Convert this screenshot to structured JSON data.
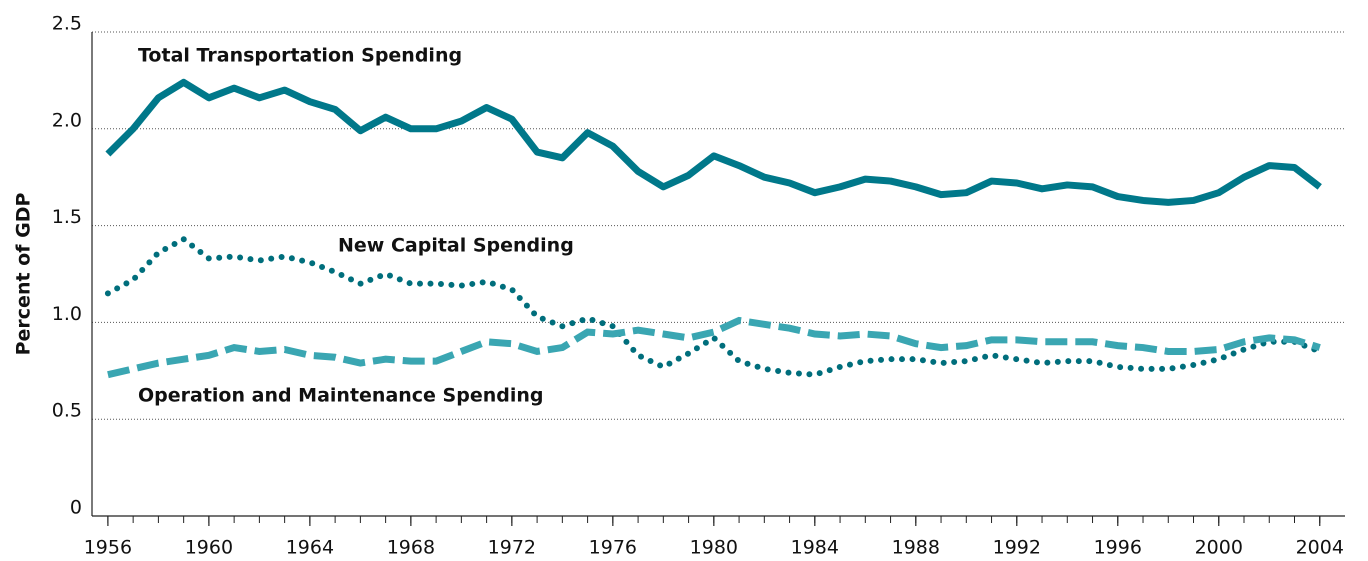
{
  "chart_data": {
    "type": "line",
    "y_label": "Percent of GDP",
    "x": [
      1956,
      1957,
      1958,
      1959,
      1960,
      1961,
      1962,
      1963,
      1964,
      1965,
      1966,
      1967,
      1968,
      1969,
      1970,
      1971,
      1972,
      1973,
      1974,
      1975,
      1976,
      1977,
      1978,
      1979,
      1980,
      1981,
      1982,
      1983,
      1984,
      1985,
      1986,
      1987,
      1988,
      1989,
      1990,
      1991,
      1992,
      1993,
      1994,
      1995,
      1996,
      1997,
      1998,
      1999,
      2000,
      2001,
      2002,
      2003,
      2004
    ],
    "xlim": [
      1955.37,
      2005
    ],
    "xticks": [
      1956,
      1960,
      1964,
      1968,
      1972,
      1976,
      1980,
      1984,
      1988,
      1992,
      1996,
      2000,
      2004
    ],
    "ylim": [
      0,
      2.5
    ],
    "yticks": [
      0,
      0.5,
      {
        "value": 1,
        "label": "1.0"
      },
      1.5,
      {
        "value": 2,
        "label": "2.0"
      },
      2.5
    ],
    "grid": true,
    "series": [
      {
        "name": "Total Transportation Spending",
        "color": "#00788a",
        "style": "solid",
        "values": [
          1.87,
          2.0,
          2.16,
          2.24,
          2.16,
          2.21,
          2.16,
          2.2,
          2.14,
          2.1,
          1.99,
          2.06,
          2.0,
          2.0,
          2.04,
          2.11,
          2.05,
          1.88,
          1.85,
          1.98,
          1.91,
          1.78,
          1.7,
          1.76,
          1.86,
          1.81,
          1.75,
          1.72,
          1.67,
          1.7,
          1.74,
          1.73,
          1.7,
          1.66,
          1.67,
          1.73,
          1.72,
          1.69,
          1.71,
          1.7,
          1.65,
          1.63,
          1.62,
          1.63,
          1.67,
          1.75,
          1.81,
          1.8,
          1.7
        ]
      },
      {
        "name": "New Capital Spending",
        "color": "#006e7c",
        "style": "dotted",
        "values": [
          1.15,
          1.22,
          1.36,
          1.43,
          1.33,
          1.34,
          1.32,
          1.34,
          1.31,
          1.26,
          1.2,
          1.25,
          1.2,
          1.2,
          1.19,
          1.21,
          1.17,
          1.03,
          0.98,
          1.02,
          0.98,
          0.83,
          0.77,
          0.84,
          0.92,
          0.8,
          0.76,
          0.74,
          0.73,
          0.77,
          0.8,
          0.81,
          0.81,
          0.79,
          0.8,
          0.83,
          0.81,
          0.79,
          0.8,
          0.8,
          0.77,
          0.76,
          0.76,
          0.78,
          0.81,
          0.86,
          0.9,
          0.9,
          0.85
        ]
      },
      {
        "name": "Operation and Maintenance Spending",
        "color": "#3aa6b2",
        "style": "dashed",
        "values": [
          0.73,
          0.76,
          0.79,
          0.81,
          0.83,
          0.87,
          0.85,
          0.86,
          0.83,
          0.82,
          0.79,
          0.81,
          0.8,
          0.8,
          0.85,
          0.9,
          0.89,
          0.85,
          0.87,
          0.95,
          0.94,
          0.96,
          0.94,
          0.92,
          0.95,
          1.01,
          0.99,
          0.97,
          0.94,
          0.93,
          0.94,
          0.93,
          0.89,
          0.87,
          0.88,
          0.91,
          0.91,
          0.9,
          0.9,
          0.9,
          0.88,
          0.87,
          0.85,
          0.85,
          0.86,
          0.9,
          0.92,
          0.91,
          0.87
        ]
      }
    ]
  }
}
